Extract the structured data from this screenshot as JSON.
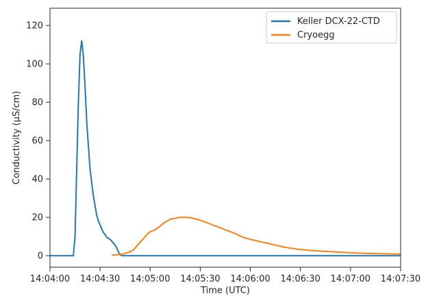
{
  "chart_data": {
    "type": "line",
    "xlabel": "Time (UTC)",
    "ylabel": "Conductivity (µS/cm)",
    "x_unit": "time (HH:MM:SS, UTC)",
    "xlim": [
      "14:04:00",
      "14:07:30"
    ],
    "ylim": [
      -6,
      129
    ],
    "x_ticks": [
      "14:04:00",
      "14:04:30",
      "14:05:00",
      "14:05:30",
      "14:06:00",
      "14:06:30",
      "14:07:00",
      "14:07:30"
    ],
    "y_ticks": [
      0,
      20,
      40,
      60,
      80,
      100,
      120
    ],
    "grid": false,
    "legend_position": "top-right",
    "series": [
      {
        "name": "Keller DCX-22-CTD",
        "color": "#1f77b4",
        "points": [
          [
            "14:04:00",
            0
          ],
          [
            "14:04:14",
            0
          ],
          [
            "14:04:15",
            10
          ],
          [
            "14:04:16",
            45
          ],
          [
            "14:04:17",
            80
          ],
          [
            "14:04:18",
            105
          ],
          [
            "14:04:19",
            112
          ],
          [
            "14:04:20",
            104
          ],
          [
            "14:04:21",
            88
          ],
          [
            "14:04:22",
            70
          ],
          [
            "14:04:23",
            57
          ],
          [
            "14:04:24",
            45
          ],
          [
            "14:04:25",
            38
          ],
          [
            "14:04:26",
            31
          ],
          [
            "14:04:27",
            26
          ],
          [
            "14:04:28",
            21
          ],
          [
            "14:04:29",
            18
          ],
          [
            "14:04:30",
            16
          ],
          [
            "14:04:31",
            14
          ],
          [
            "14:04:32",
            12
          ],
          [
            "14:04:33",
            11
          ],
          [
            "14:04:34",
            9.5
          ],
          [
            "14:04:35",
            9
          ],
          [
            "14:04:36",
            8.5
          ],
          [
            "14:04:37",
            7.5
          ],
          [
            "14:04:38",
            6.5
          ],
          [
            "14:04:39",
            5.5
          ],
          [
            "14:04:40",
            4
          ],
          [
            "14:04:41",
            2
          ],
          [
            "14:04:42",
            0.5
          ],
          [
            "14:04:43",
            0
          ],
          [
            "14:07:30",
            0
          ]
        ]
      },
      {
        "name": "Cryoegg",
        "color": "#ff7f0e",
        "points": [
          [
            "14:04:37",
            0.3
          ],
          [
            "14:04:40",
            0.4
          ],
          [
            "14:04:43",
            0.8
          ],
          [
            "14:04:46",
            1.5
          ],
          [
            "14:04:48",
            2
          ],
          [
            "14:04:50",
            3
          ],
          [
            "14:04:52",
            5
          ],
          [
            "14:04:55",
            8
          ],
          [
            "14:04:58",
            11
          ],
          [
            "14:05:00",
            12.5
          ],
          [
            "14:05:03",
            13.5
          ],
          [
            "14:05:06",
            15.5
          ],
          [
            "14:05:09",
            17.5
          ],
          [
            "14:05:12",
            19
          ],
          [
            "14:05:15",
            19.5
          ],
          [
            "14:05:18",
            20
          ],
          [
            "14:05:21",
            20
          ],
          [
            "14:05:24",
            19.8
          ],
          [
            "14:05:27",
            19.2
          ],
          [
            "14:05:30",
            18.5
          ],
          [
            "14:05:33",
            17.5
          ],
          [
            "14:05:36",
            16.5
          ],
          [
            "14:05:39",
            15.5
          ],
          [
            "14:05:42",
            14.5
          ],
          [
            "14:05:45",
            13.5
          ],
          [
            "14:05:48",
            12.5
          ],
          [
            "14:05:51",
            11.5
          ],
          [
            "14:05:54",
            10.2
          ],
          [
            "14:05:57",
            9.2
          ],
          [
            "14:06:00",
            8.5
          ],
          [
            "14:06:05",
            7.5
          ],
          [
            "14:06:10",
            6.5
          ],
          [
            "14:06:15",
            5.5
          ],
          [
            "14:06:20",
            4.5
          ],
          [
            "14:06:25",
            3.8
          ],
          [
            "14:06:30",
            3.2
          ],
          [
            "14:06:40",
            2.5
          ],
          [
            "14:06:50",
            2
          ],
          [
            "14:07:00",
            1.5
          ],
          [
            "14:07:10",
            1.2
          ],
          [
            "14:07:20",
            1
          ],
          [
            "14:07:30",
            0.8
          ]
        ]
      }
    ]
  }
}
